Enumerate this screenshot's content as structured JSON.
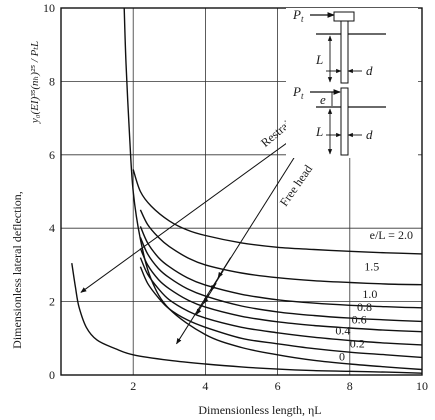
{
  "chart_data": {
    "type": "line",
    "xlabel": "Dimensionless length, ηL",
    "ylabel_main": "Dimensionless lateral deflection,",
    "ylabel_expr": "y₀(EI)³⁵(nₕ)²⁵ / PₜL",
    "xlim": [
      0,
      10
    ],
    "ylim": [
      0,
      10
    ],
    "x_ticks": [
      "2",
      "4",
      "6",
      "8",
      "10"
    ],
    "y_ticks": [
      "0",
      "2",
      "4",
      "6",
      "8",
      "10"
    ],
    "grid": true,
    "series": [
      {
        "name": "Restrained",
        "x": [
          0.3,
          0.4,
          0.5,
          0.7,
          1.0,
          1.5,
          2.0,
          3.0,
          4.0,
          5.0,
          6.0,
          7.0,
          8.0,
          9.0,
          10.0
        ],
        "y": [
          3.05,
          2.4,
          1.85,
          1.3,
          0.95,
          0.72,
          0.55,
          0.4,
          0.3,
          0.22,
          0.16,
          0.12,
          0.1,
          0.08,
          0.05
        ]
      },
      {
        "name": "0",
        "x": [
          1.75,
          1.8,
          1.9,
          2.0,
          2.2,
          2.5,
          3.0,
          4.0,
          5.0,
          6.0,
          7.0,
          8.0,
          9.0,
          10.0
        ],
        "y": [
          10.0,
          8.5,
          6.5,
          5.0,
          3.7,
          2.6,
          1.8,
          1.1,
          0.75,
          0.55,
          0.4,
          0.3,
          0.22,
          0.15
        ]
      },
      {
        "name": "0.2",
        "x": [
          2.2,
          2.4,
          2.7,
          3.0,
          3.5,
          4.0,
          5.0,
          6.0,
          7.0,
          8.0,
          9.0,
          10.0
        ],
        "y": [
          2.95,
          2.5,
          2.1,
          1.8,
          1.5,
          1.3,
          1.0,
          0.85,
          0.72,
          0.62,
          0.55,
          0.48
        ]
      },
      {
        "name": "0.4",
        "x": [
          2.2,
          2.4,
          2.7,
          3.0,
          3.5,
          4.0,
          5.0,
          6.0,
          7.0,
          8.0,
          9.0,
          10.0
        ],
        "y": [
          3.2,
          2.75,
          2.35,
          2.05,
          1.75,
          1.55,
          1.3,
          1.15,
          1.03,
          0.94,
          0.87,
          0.82
        ]
      },
      {
        "name": "0.6",
        "x": [
          2.2,
          2.4,
          2.7,
          3.0,
          3.5,
          4.0,
          5.0,
          6.0,
          7.0,
          8.0,
          9.0,
          10.0
        ],
        "y": [
          3.45,
          3.0,
          2.6,
          2.35,
          2.05,
          1.85,
          1.6,
          1.45,
          1.35,
          1.28,
          1.22,
          1.18
        ]
      },
      {
        "name": "0.8",
        "x": [
          2.2,
          2.4,
          2.7,
          3.0,
          3.5,
          4.0,
          5.0,
          6.0,
          7.0,
          8.0,
          9.0,
          10.0
        ],
        "y": [
          3.75,
          3.3,
          2.9,
          2.65,
          2.35,
          2.15,
          1.88,
          1.72,
          1.62,
          1.55,
          1.5,
          1.46
        ]
      },
      {
        "name": "1.0",
        "x": [
          2.2,
          2.4,
          2.7,
          3.0,
          3.5,
          4.0,
          5.0,
          6.0,
          7.0,
          8.0,
          9.0,
          10.0
        ],
        "y": [
          4.05,
          3.6,
          3.2,
          2.95,
          2.65,
          2.45,
          2.2,
          2.05,
          1.96,
          1.9,
          1.86,
          1.83
        ]
      },
      {
        "name": "1.5",
        "x": [
          2.2,
          2.4,
          2.7,
          3.0,
          3.5,
          4.0,
          5.0,
          6.0,
          7.0,
          8.0,
          9.0,
          10.0
        ],
        "y": [
          4.5,
          4.1,
          3.75,
          3.5,
          3.2,
          3.0,
          2.78,
          2.65,
          2.57,
          2.52,
          2.48,
          2.46
        ]
      },
      {
        "name": "e/L = 2.0",
        "x": [
          2.0,
          2.2,
          2.5,
          3.0,
          3.5,
          4.0,
          5.0,
          6.0,
          7.0,
          8.0,
          9.0,
          10.0
        ],
        "y": [
          5.6,
          5.0,
          4.6,
          4.2,
          3.95,
          3.8,
          3.6,
          3.48,
          3.42,
          3.37,
          3.33,
          3.3
        ]
      }
    ],
    "curve_labels": [
      {
        "text": "e/L = 2.0",
        "x": 8.55,
        "y": 3.7
      },
      {
        "text": "1.5",
        "x": 8.4,
        "y": 2.85
      },
      {
        "text": "1.0",
        "x": 8.35,
        "y": 2.1
      },
      {
        "text": "0.8",
        "x": 8.2,
        "y": 1.75
      },
      {
        "text": "0.6",
        "x": 8.05,
        "y": 1.4
      },
      {
        "text": "0.4",
        "x": 7.6,
        "y": 1.1
      },
      {
        "text": "0.2",
        "x": 8.0,
        "y": 0.75
      },
      {
        "text": "0",
        "x": 7.7,
        "y": 0.4
      }
    ],
    "annotations": [
      {
        "text": "Restrained",
        "x": 6.2,
        "y": 6.65,
        "rotate": -40
      },
      {
        "text": "Free head",
        "x": 6.6,
        "y": 5.1,
        "rotate": -55
      }
    ],
    "inset": {
      "label_pt_top": "P",
      "label_pt_top_sub": "t",
      "label_L_top": "L",
      "label_d_top": "d",
      "label_pt_bottom": "P",
      "label_pt_bottom_sub": "t",
      "label_e": "e",
      "label_L_bottom": "L",
      "label_d_bottom": "d"
    }
  }
}
